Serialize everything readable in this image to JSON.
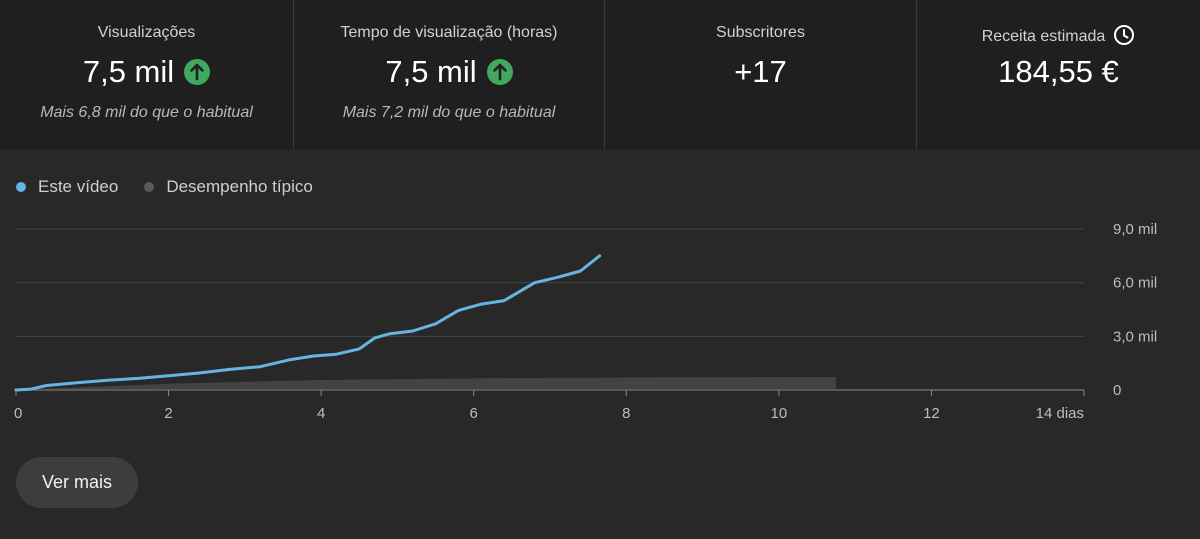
{
  "metrics": [
    {
      "title": "Visualizações",
      "value": "7,5 mil",
      "note": "Mais 6,8 mil do que o habitual",
      "icon": "arrow-up-circle-icon"
    },
    {
      "title": "Tempo de visualização (horas)",
      "value": "7,5 mil",
      "note": "Mais 7,2 mil do que o habitual",
      "icon": "arrow-up-circle-icon"
    },
    {
      "title": "Subscritores",
      "value": "+17",
      "note": ""
    },
    {
      "title": "Receita estimada",
      "value": "184,55 €",
      "note": "",
      "icon": "clock-icon"
    }
  ],
  "colors": {
    "accent": "#65b5e0",
    "up": "#41a85f",
    "typical": "#5a5a5a"
  },
  "legend": {
    "series_this": "Este vídeo",
    "series_typical": "Desempenho típico"
  },
  "buttons": {
    "more": "Ver mais"
  },
  "chart_data": {
    "type": "line",
    "xlabel_suffix": "14 dias",
    "x_ticks": [
      "0",
      "2",
      "4",
      "6",
      "8",
      "10",
      "12",
      "14 dias"
    ],
    "y_ticks": [
      "0",
      "3,0 mil",
      "6,0 mil",
      "9,0 mil"
    ],
    "xlim": [
      0,
      14
    ],
    "ylim": [
      0,
      9000
    ],
    "series": [
      {
        "name": "Este vídeo",
        "x": [
          0,
          0.2,
          0.4,
          0.8,
          1.2,
          1.6,
          2.0,
          2.4,
          2.8,
          3.2,
          3.6,
          3.9,
          4.2,
          4.5,
          4.7,
          4.9,
          5.2,
          5.5,
          5.8,
          6.1,
          6.4,
          6.6,
          6.8,
          7.1,
          7.4,
          7.65
        ],
        "values": [
          0,
          50,
          250,
          400,
          550,
          650,
          800,
          950,
          1150,
          1300,
          1700,
          1900,
          2000,
          2300,
          2900,
          3150,
          3300,
          3700,
          4450,
          4800,
          5000,
          5500,
          6000,
          6300,
          6650,
          7500
        ]
      },
      {
        "name": "Desempenho típico",
        "x": [
          0,
          2,
          4,
          6,
          8,
          10,
          10.75
        ],
        "values": [
          0,
          350,
          560,
          650,
          700,
          720,
          720
        ]
      }
    ]
  }
}
